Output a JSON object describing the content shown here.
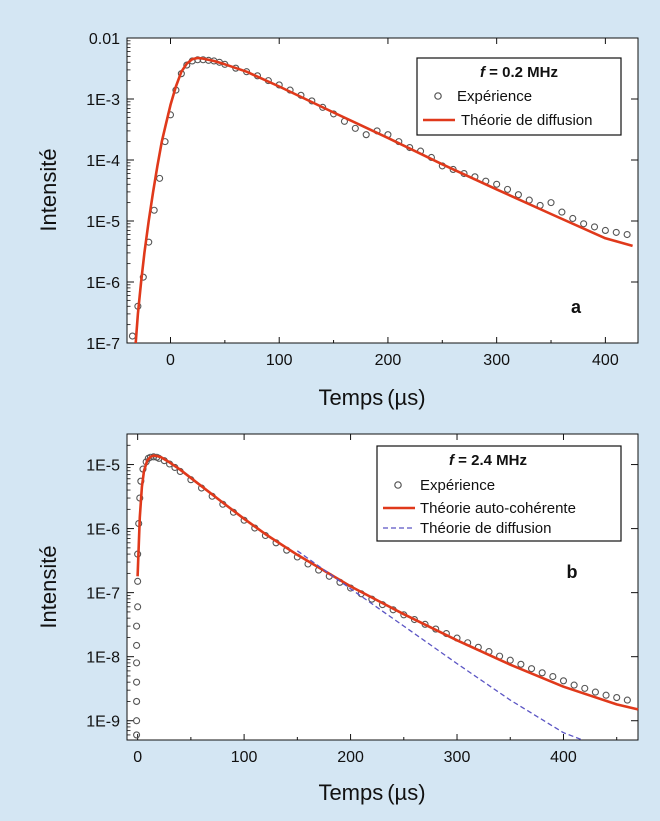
{
  "colors": {
    "background": "#d4e6f3",
    "plot_bg": "#ffffff",
    "experience": "#555555",
    "theory_red": "#e0391b",
    "theory_blue": "#5b55c4"
  },
  "chart_data": [
    {
      "type": "line",
      "panel_letter": "a",
      "xlabel_main": "Temps",
      "xlabel_unit": "(µs)",
      "ylabel": "Intensité",
      "xlim": [
        -40,
        430
      ],
      "ylim": [
        1e-07,
        0.01
      ],
      "y_scale": "log",
      "x_ticks": [
        0,
        100,
        200,
        300,
        400
      ],
      "x_tick_labels": [
        "0",
        "100",
        "200",
        "300",
        "400"
      ],
      "y_ticks": [
        1e-07,
        1e-06,
        1e-05,
        0.0001,
        0.001,
        0.01
      ],
      "y_tick_labels": [
        "1E-7",
        "1E-6",
        "1E-5",
        "1E-4",
        "1E-3",
        "0.01"
      ],
      "legend": {
        "placement": "top-right",
        "title_italic": "f",
        "title_rest": " = 0.2 MHz",
        "entries": [
          "Expérience",
          "Théorie de diffusion"
        ]
      },
      "series": [
        {
          "name": "Expérience",
          "style": "scatter-open-circle",
          "x": [
            -35,
            -30,
            -25,
            -20,
            -15,
            -10,
            -5,
            0,
            5,
            10,
            15,
            20,
            25,
            30,
            35,
            40,
            45,
            50,
            60,
            70,
            80,
            90,
            100,
            110,
            120,
            130,
            140,
            150,
            160,
            170,
            180,
            190,
            200,
            210,
            220,
            230,
            240,
            250,
            260,
            270,
            280,
            290,
            300,
            310,
            320,
            330,
            340,
            350,
            360,
            370,
            380,
            390,
            400,
            410,
            420
          ],
          "y": [
            1.3e-07,
            4e-07,
            1.2e-06,
            4.5e-06,
            1.5e-05,
            5e-05,
            0.0002,
            0.00055,
            0.0014,
            0.0026,
            0.0036,
            0.0042,
            0.0044,
            0.0044,
            0.0043,
            0.0042,
            0.004,
            0.0037,
            0.0032,
            0.0028,
            0.0024,
            0.002,
            0.0017,
            0.0014,
            0.00115,
            0.00093,
            0.00073,
            0.00057,
            0.00043,
            0.00033,
            0.00026,
            0.0003,
            0.00026,
            0.0002,
            0.00016,
            0.00014,
            0.00011,
            8e-05,
            7e-05,
            6e-05,
            5.3e-05,
            4.5e-05,
            4e-05,
            3.3e-05,
            2.7e-05,
            2.2e-05,
            1.8e-05,
            2e-05,
            1.4e-05,
            1.1e-05,
            9e-06,
            8e-06,
            7e-06,
            6.5e-06,
            6e-06
          ]
        },
        {
          "name": "Théorie de diffusion",
          "style": "solid",
          "x": [
            -32,
            -30,
            -27,
            -24,
            -20,
            -16,
            -12,
            -8,
            -4,
            0,
            5,
            10,
            15,
            20,
            25,
            30,
            40,
            50,
            70,
            100,
            150,
            200,
            250,
            300,
            350,
            400,
            425
          ],
          "y": [
            1e-07,
            3e-07,
            1e-06,
            3e-06,
            1e-05,
            3e-05,
            8e-05,
            0.0002,
            0.0004,
            0.0008,
            0.0016,
            0.0028,
            0.0038,
            0.0045,
            0.0047,
            0.0046,
            0.0042,
            0.0037,
            0.0028,
            0.0016,
            0.0006,
            0.00023,
            8.5e-05,
            3.3e-05,
            1.3e-05,
            5.2e-06,
            3.9e-06
          ]
        }
      ]
    },
    {
      "type": "line",
      "panel_letter": "b",
      "xlabel_main": "Temps",
      "xlabel_unit": "(µs)",
      "ylabel": "Intensité",
      "xlim": [
        -10,
        470
      ],
      "ylim": [
        5e-10,
        3e-05
      ],
      "y_scale": "log",
      "x_ticks": [
        0,
        100,
        200,
        300,
        400
      ],
      "x_tick_labels": [
        "0",
        "100",
        "200",
        "300",
        "400"
      ],
      "y_ticks": [
        1e-09,
        1e-08,
        1e-07,
        1e-06,
        1e-05
      ],
      "y_tick_labels": [
        "1E-9",
        "1E-8",
        "1E-7",
        "1E-6",
        "1E-5"
      ],
      "legend": {
        "placement": "top-right",
        "title_italic": "f",
        "title_rest": " = 2.4 MHz",
        "entries": [
          "Expérience",
          "Théorie auto-cohérente",
          "Théorie de diffusion"
        ]
      },
      "series": [
        {
          "name": "Expérience",
          "style": "scatter-open-circle",
          "x": [
            -1,
            -1,
            -1,
            -1,
            -1,
            -1,
            -1,
            0,
            0,
            0,
            1,
            2,
            3,
            5,
            8,
            10,
            12,
            15,
            18,
            20,
            25,
            30,
            35,
            40,
            50,
            60,
            70,
            80,
            90,
            100,
            110,
            120,
            130,
            140,
            150,
            160,
            170,
            180,
            190,
            200,
            210,
            220,
            230,
            240,
            250,
            260,
            270,
            280,
            290,
            300,
            310,
            320,
            330,
            340,
            350,
            360,
            370,
            380,
            390,
            400,
            410,
            420,
            430,
            440,
            450,
            460
          ],
          "y": [
            6e-10,
            1e-09,
            2e-09,
            4e-09,
            8e-09,
            1.5e-08,
            3e-08,
            6e-08,
            1.5e-07,
            4e-07,
            1.2e-06,
            3e-06,
            5.5e-06,
            8.5e-06,
            1.1e-05,
            1.25e-05,
            1.3e-05,
            1.32e-05,
            1.3e-05,
            1.25e-05,
            1.15e-05,
            1.02e-05,
            9e-06,
            7.8e-06,
            5.8e-06,
            4.3e-06,
            3.2e-06,
            2.4e-06,
            1.8e-06,
            1.35e-06,
            1.02e-06,
            7.8e-07,
            6e-07,
            4.6e-07,
            3.6e-07,
            2.8e-07,
            2.25e-07,
            1.8e-07,
            1.45e-07,
            1.18e-07,
            9.6e-08,
            7.9e-08,
            6.5e-08,
            5.4e-08,
            4.5e-08,
            3.8e-08,
            3.2e-08,
            2.7e-08,
            2.3e-08,
            1.95e-08,
            1.65e-08,
            1.4e-08,
            1.2e-08,
            1.02e-08,
            8.8e-09,
            7.6e-09,
            6.5e-09,
            5.6e-09,
            4.9e-09,
            4.2e-09,
            3.6e-09,
            3.2e-09,
            2.8e-09,
            2.5e-09,
            2.3e-09,
            2.1e-09
          ]
        },
        {
          "name": "Théorie auto-cohérente",
          "style": "solid",
          "x": [
            0,
            2,
            4,
            6,
            9,
            12,
            15,
            18,
            22,
            30,
            40,
            60,
            80,
            100,
            120,
            150,
            200,
            250,
            300,
            350,
            400,
            450,
            470
          ],
          "y": [
            1.8e-07,
            1.5e-06,
            4.5e-06,
            8e-06,
            1.15e-05,
            1.32e-05,
            1.38e-05,
            1.36e-05,
            1.3e-05,
            1.08e-05,
            8.3e-06,
            4.6e-06,
            2.55e-06,
            1.42e-06,
            8.2e-07,
            3.9e-07,
            1.25e-07,
            4.6e-08,
            1.8e-08,
            7.5e-09,
            3.4e-09,
            1.8e-09,
            1.5e-09
          ]
        },
        {
          "name": "Théorie de diffusion",
          "style": "dashed",
          "x": [
            150,
            200,
            250,
            300,
            350,
            400,
            418
          ],
          "y": [
            4.5e-07,
            1.15e-07,
            3e-08,
            7.8e-09,
            2.1e-09,
            6.5e-10,
            5e-10
          ]
        }
      ]
    }
  ]
}
